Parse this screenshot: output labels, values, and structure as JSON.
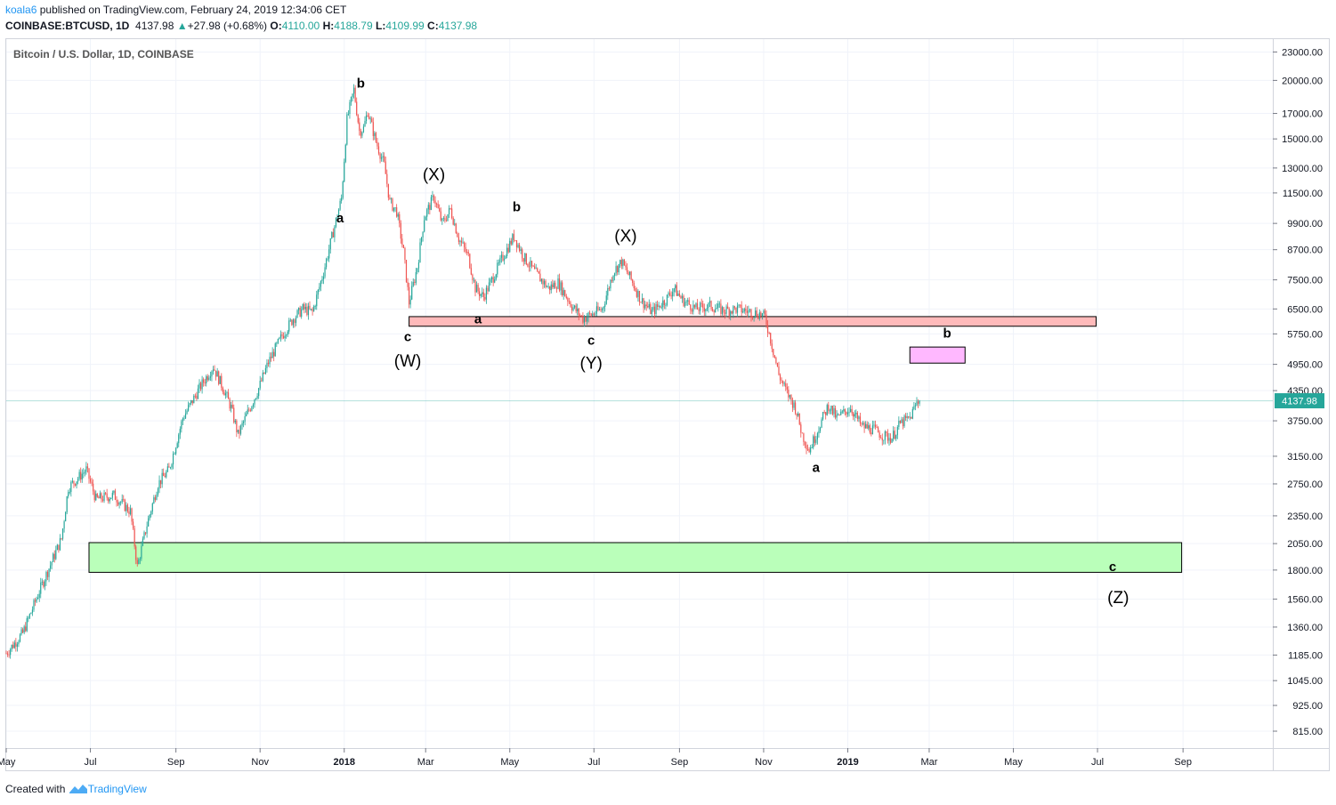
{
  "header": {
    "user": "koala6",
    "published": "published on TradingView.com, February 24, 2019 12:34:06 CET",
    "symbol": "COINBASE:BTCUSD, 1D",
    "last": "4137.98",
    "change": "+27.98 (+0.68%)",
    "o_label": "O:",
    "o": "4110.00",
    "h_label": "H:",
    "h": "4188.79",
    "l_label": "L:",
    "l": "4109.99",
    "c_label": "C:",
    "c": "4137.98",
    "arrow": "▲"
  },
  "footer": {
    "created": "Created with",
    "brand": "TradingView"
  },
  "colors": {
    "up": "#26a69a",
    "down": "#ef5350",
    "grid": "#f0f3fa",
    "accent": "#2196f3"
  },
  "chart_data": {
    "type": "candlestick",
    "title": "Bitcoin / U.S. Dollar, 1D, COINBASE",
    "scale": "log",
    "ylim": [
      750,
      24500
    ],
    "y_ticks": [
      "23000.00",
      "20000.00",
      "17000.00",
      "15000.00",
      "13000.00",
      "11500.00",
      "9900.00",
      "8700.00",
      "7500.00",
      "6500.00",
      "5750.00",
      "4950.00",
      "4350.00",
      "3750.00",
      "3150.00",
      "2750.00",
      "2350.00",
      "2050.00",
      "1800.00",
      "1560.00",
      "1360.00",
      "1185.00",
      "1045.00",
      "925.00",
      "815.00"
    ],
    "x_ticks": [
      {
        "label": "May",
        "bold": false
      },
      {
        "label": "Jul",
        "bold": false
      },
      {
        "label": "Sep",
        "bold": false
      },
      {
        "label": "Nov",
        "bold": false
      },
      {
        "label": "2018",
        "bold": true
      },
      {
        "label": "Mar",
        "bold": false
      },
      {
        "label": "May",
        "bold": false
      },
      {
        "label": "Jul",
        "bold": false
      },
      {
        "label": "Sep",
        "bold": false
      },
      {
        "label": "Nov",
        "bold": false
      },
      {
        "label": "2019",
        "bold": true
      },
      {
        "label": "Mar",
        "bold": false
      },
      {
        "label": "May",
        "bold": false
      },
      {
        "label": "Jul",
        "bold": false
      },
      {
        "label": "Sep",
        "bold": false
      }
    ],
    "x_tick_days": [
      0,
      61,
      123,
      184,
      245,
      304,
      365,
      426,
      488,
      549,
      610,
      669,
      730,
      791,
      853
    ],
    "last_price": 4137.98,
    "last_price_label": "4137.98",
    "path": [
      [
        0,
        1195
      ],
      [
        12,
        1320
      ],
      [
        25,
        1650
      ],
      [
        40,
        2100
      ],
      [
        45,
        2700
      ],
      [
        58,
        2950
      ],
      [
        65,
        2550
      ],
      [
        78,
        2600
      ],
      [
        90,
        2400
      ],
      [
        95,
        1830
      ],
      [
        102,
        2250
      ],
      [
        110,
        2750
      ],
      [
        118,
        2950
      ],
      [
        128,
        3800
      ],
      [
        140,
        4400
      ],
      [
        150,
        4900
      ],
      [
        158,
        4350
      ],
      [
        163,
        4000
      ],
      [
        168,
        3500
      ],
      [
        175,
        3900
      ],
      [
        183,
        4400
      ],
      [
        190,
        5000
      ],
      [
        200,
        5700
      ],
      [
        208,
        6200
      ],
      [
        215,
        6500
      ],
      [
        222,
        6400
      ],
      [
        230,
        7800
      ],
      [
        237,
        9500
      ],
      [
        243,
        11200
      ],
      [
        247,
        16500
      ],
      [
        252,
        19100
      ],
      [
        256,
        15600
      ],
      [
        259,
        15800
      ],
      [
        262,
        17200
      ],
      [
        268,
        14800
      ],
      [
        274,
        13200
      ],
      [
        278,
        11000
      ],
      [
        283,
        10500
      ],
      [
        288,
        8600
      ],
      [
        292,
        6700
      ],
      [
        298,
        8000
      ],
      [
        303,
        10200
      ],
      [
        310,
        11300
      ],
      [
        316,
        9900
      ],
      [
        322,
        10600
      ],
      [
        328,
        9200
      ],
      [
        335,
        8400
      ],
      [
        340,
        7200
      ],
      [
        346,
        6900
      ],
      [
        352,
        7500
      ],
      [
        360,
        8400
      ],
      [
        368,
        9300
      ],
      [
        375,
        8400
      ],
      [
        383,
        7800
      ],
      [
        393,
        7200
      ],
      [
        400,
        7400
      ],
      [
        410,
        6600
      ],
      [
        418,
        6200
      ],
      [
        423,
        6300
      ],
      [
        432,
        6500
      ],
      [
        440,
        7800
      ],
      [
        446,
        8200
      ],
      [
        452,
        7600
      ],
      [
        460,
        6800
      ],
      [
        468,
        6400
      ],
      [
        478,
        6800
      ],
      [
        484,
        7200
      ],
      [
        490,
        6800
      ],
      [
        500,
        6500
      ],
      [
        510,
        6600
      ],
      [
        520,
        6450
      ],
      [
        530,
        6500
      ],
      [
        540,
        6400
      ],
      [
        546,
        6350
      ],
      [
        550,
        6250
      ],
      [
        554,
        5600
      ],
      [
        560,
        4700
      ],
      [
        566,
        4300
      ],
      [
        572,
        4000
      ],
      [
        577,
        3500
      ],
      [
        582,
        3250
      ],
      [
        586,
        3450
      ],
      [
        590,
        3700
      ],
      [
        596,
        4050
      ],
      [
        602,
        3800
      ],
      [
        612,
        4000
      ],
      [
        620,
        3650
      ],
      [
        628,
        3600
      ],
      [
        636,
        3480
      ],
      [
        642,
        3450
      ],
      [
        648,
        3700
      ],
      [
        655,
        3800
      ],
      [
        660,
        4100
      ],
      [
        662,
        4138
      ]
    ],
    "bands": [
      {
        "name": "resistance-zone",
        "y0": 5970,
        "y1": 6260,
        "x0": 292,
        "x1": 790,
        "color": "#ffbaba"
      },
      {
        "name": "support-zone",
        "y0": 1780,
        "y1": 2060,
        "x0": 60,
        "x1": 852,
        "color": "#baffba"
      },
      {
        "name": "b-target-zone",
        "y0": 4980,
        "y1": 5390,
        "x0": 655,
        "x1": 695,
        "color": "#ffb8ff"
      }
    ],
    "annotations": [
      {
        "text": "b",
        "day": 257,
        "price": 19300,
        "size": 15,
        "bold": true
      },
      {
        "text": "a",
        "day": 242,
        "price": 9950,
        "size": 15,
        "bold": true
      },
      {
        "text": "(X)",
        "day": 310,
        "price": 12250,
        "size": 19,
        "bold": false
      },
      {
        "text": "c",
        "day": 291,
        "price": 5550,
        "size": 15,
        "bold": true
      },
      {
        "text": "(W)",
        "day": 291,
        "price": 4900,
        "size": 19,
        "bold": false
      },
      {
        "text": "a",
        "day": 342,
        "price": 6050,
        "size": 15,
        "bold": true
      },
      {
        "text": "b",
        "day": 370,
        "price": 10500,
        "size": 15,
        "bold": true
      },
      {
        "text": "(X)",
        "day": 449,
        "price": 9050,
        "size": 19,
        "bold": false
      },
      {
        "text": "c",
        "day": 424,
        "price": 5450,
        "size": 15,
        "bold": true
      },
      {
        "text": "(Y)",
        "day": 424,
        "price": 4850,
        "size": 19,
        "bold": false
      },
      {
        "text": "a",
        "day": 587,
        "price": 2920,
        "size": 15,
        "bold": true
      },
      {
        "text": "b",
        "day": 682,
        "price": 5650,
        "size": 15,
        "bold": true
      },
      {
        "text": "c",
        "day": 802,
        "price": 1790,
        "size": 15,
        "bold": true
      },
      {
        "text": "(Z)",
        "day": 806,
        "price": 1530,
        "size": 19,
        "bold": false
      }
    ]
  }
}
